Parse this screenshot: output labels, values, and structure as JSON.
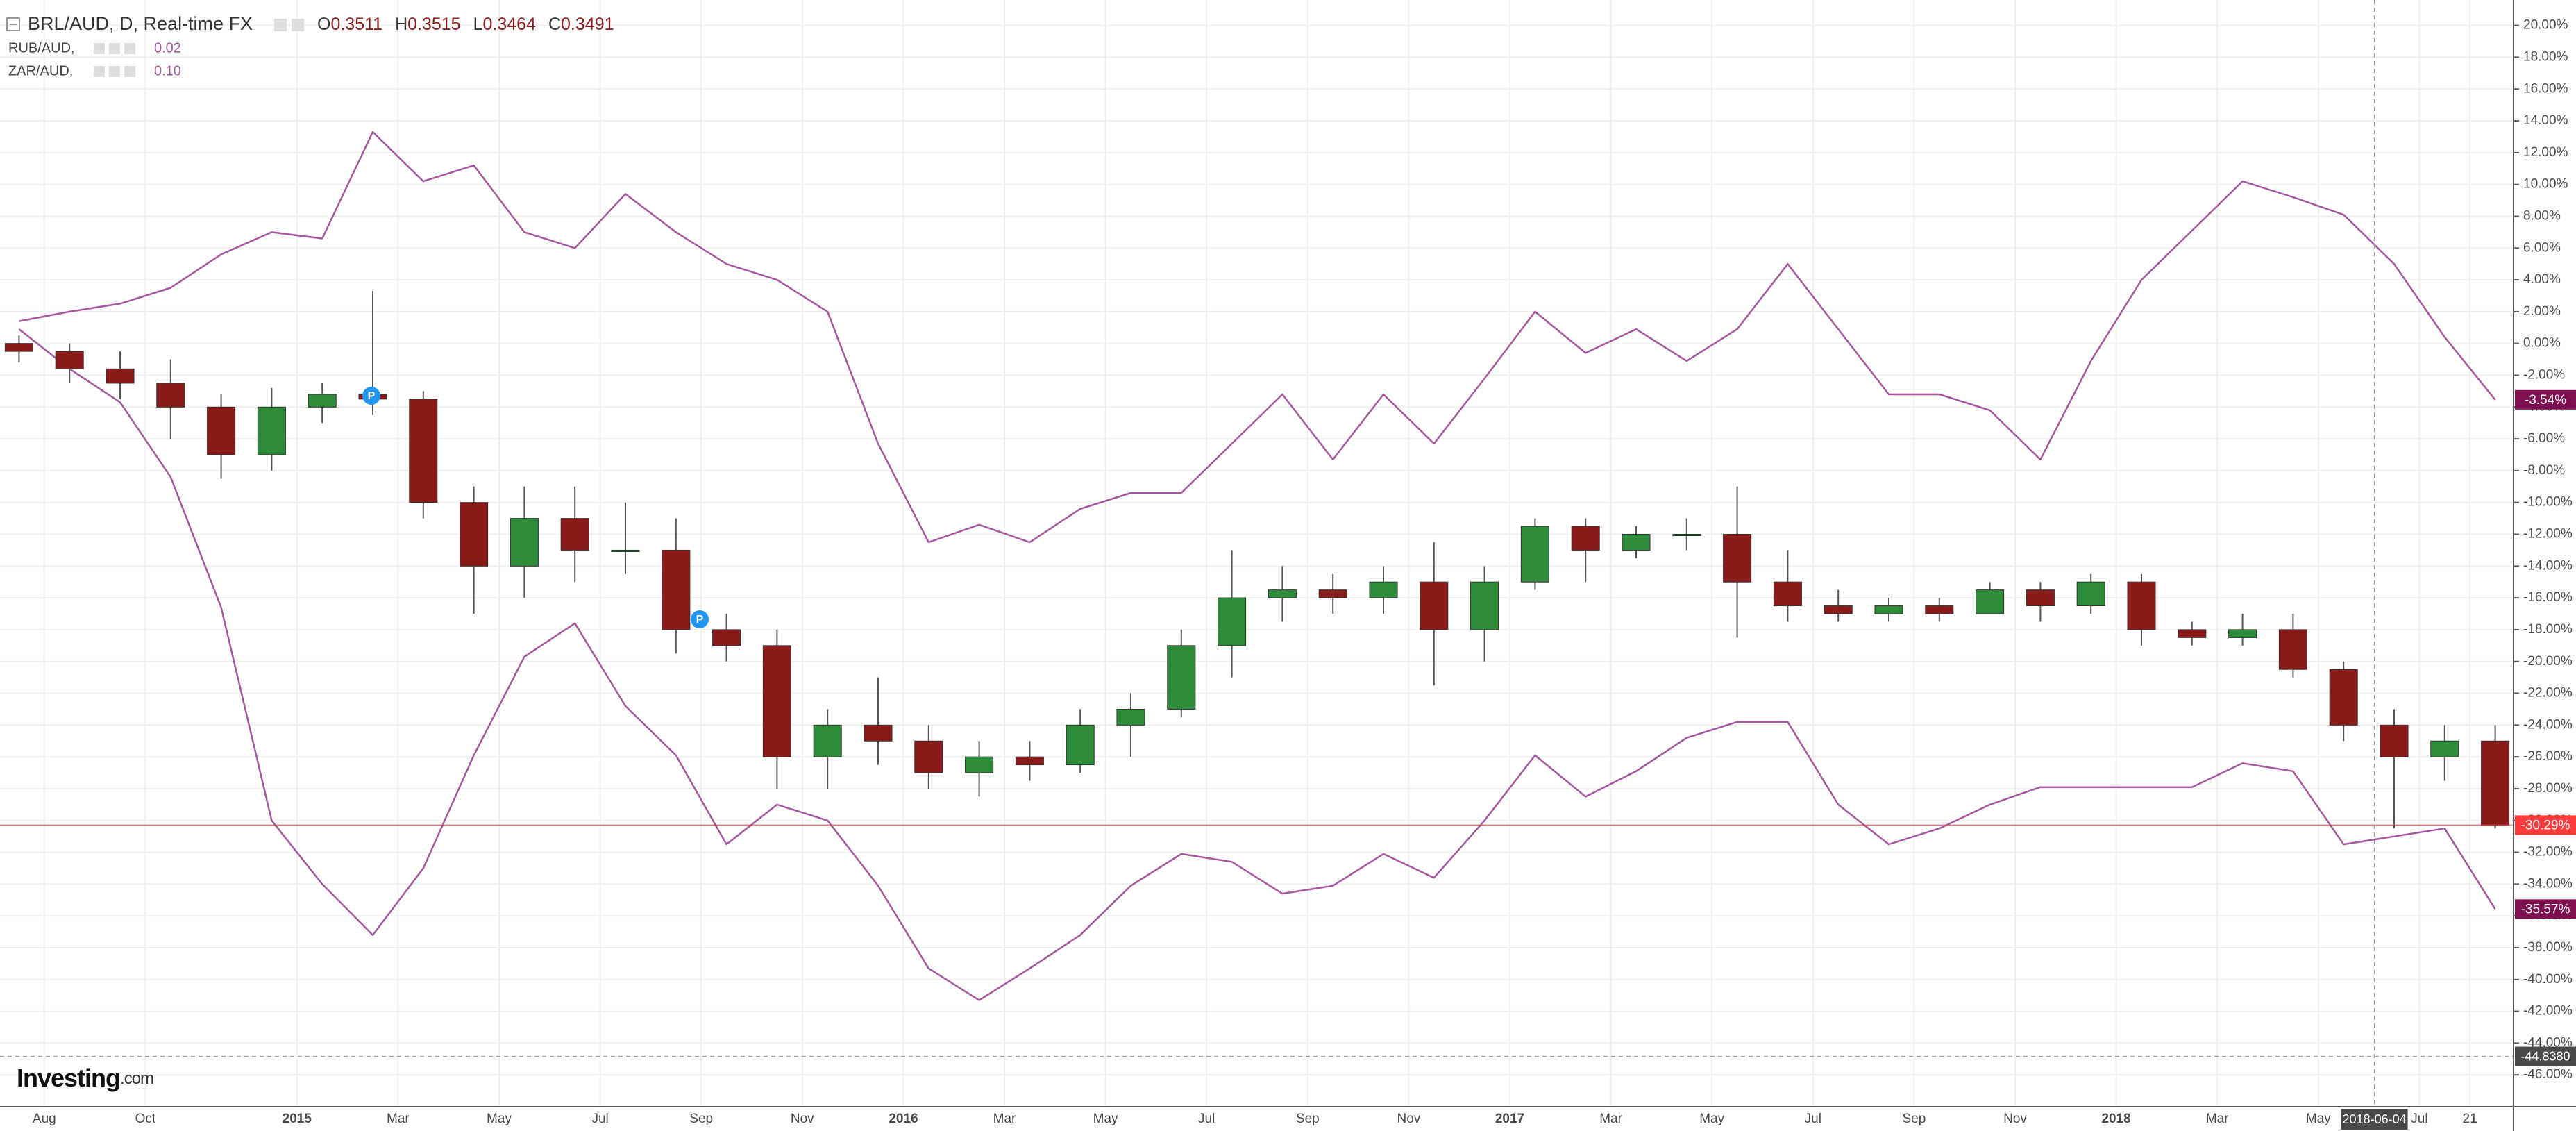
{
  "chart_data": {
    "type": "candlestick",
    "title": "BRL/AUD, D, Real-time FX",
    "ohlc_header": [
      {
        "key": "O",
        "value": "0.3511"
      },
      {
        "key": "H",
        "value": "0.3515"
      },
      {
        "key": "L",
        "value": "0.3464"
      },
      {
        "key": "C",
        "value": "0.3491"
      }
    ],
    "categories": [
      null,
      "Aug",
      null,
      "Oct",
      null,
      null,
      "2015",
      null,
      "Mar",
      null,
      "May",
      null,
      "Jul",
      null,
      "Sep",
      null,
      "Nov",
      null,
      "2016",
      null,
      "Mar",
      null,
      "May",
      null,
      "Jul",
      null,
      "Sep",
      null,
      "Nov",
      null,
      "2017",
      null,
      "Mar",
      null,
      "May",
      null,
      "Jul",
      null,
      "Sep",
      null,
      "Nov",
      null,
      "2018",
      null,
      "Mar",
      null,
      "May",
      null,
      "Jul",
      "21"
    ],
    "candles": {
      "name": "BRL/AUD",
      "up_color": "#2e8b3a",
      "down_color": "#8b1a1a",
      "wick_color": "#555555",
      "open": [
        0,
        -0.5,
        -1.6,
        -2.5,
        -4,
        -7,
        -4,
        -3.2,
        -3.5,
        -10,
        -14,
        -11,
        -13,
        -13,
        -18,
        -19,
        -26,
        -24,
        -25,
        -27,
        -26,
        -26.5,
        -24,
        -23,
        -19,
        -16,
        -15.5,
        -16,
        -15,
        -18,
        -15,
        -11.5,
        -13,
        -12,
        -12,
        -15,
        -16.5,
        -17,
        -16.5,
        -17,
        -15.5,
        -16.5,
        -15,
        -18,
        -18.5,
        -18,
        -20.5,
        -24,
        -26,
        -25
      ],
      "high": [
        0.5,
        0,
        -0.5,
        -1,
        -3.2,
        -2.8,
        -2.5,
        3.3,
        -3,
        -9,
        -9,
        -9,
        -10,
        -11,
        -17,
        -18,
        -23,
        -21,
        -24,
        -25,
        -25,
        -23,
        -22,
        -18,
        -13,
        -14,
        -14.5,
        -14,
        -12.5,
        -14,
        -11,
        -11,
        -11.5,
        -11,
        -9,
        -13,
        -15.5,
        -16,
        -16,
        -15,
        -15,
        -14.5,
        -14.5,
        -17.5,
        -17,
        -17,
        -20,
        -23,
        -24,
        -24
      ],
      "low": [
        -1.2,
        -2.5,
        -3.5,
        -6,
        -8.5,
        -8,
        -5,
        -4.5,
        -11,
        -17,
        -16,
        -15,
        -14.5,
        -19.5,
        -20,
        -28,
        -28,
        -26.5,
        -28,
        -28.5,
        -27.5,
        -27,
        -26,
        -23.5,
        -21,
        -17.5,
        -17,
        -17,
        -21.5,
        -20,
        -15.5,
        -15,
        -13.5,
        -13,
        -18.5,
        -17.5,
        -17.5,
        -17.5,
        -17.5,
        -17,
        -17.5,
        -17,
        -19,
        -19,
        -19,
        -21,
        -25,
        -30.5,
        -27.5,
        -30.5
      ],
      "close": [
        -0.5,
        -1.6,
        -2.5,
        -4,
        -7,
        -4,
        -3.2,
        -3.5,
        -10,
        -14,
        -11,
        -13,
        -13,
        -18,
        -19,
        -26,
        -24,
        -25,
        -27,
        -26,
        -26.5,
        -24,
        -23,
        -19,
        -16,
        -15.5,
        -16,
        -15,
        -18,
        -15,
        -11.5,
        -13,
        -12,
        -12,
        -15,
        -16.5,
        -17,
        -16.5,
        -17,
        -15.5,
        -16.5,
        -15,
        -18,
        -18.5,
        -18,
        -20.5,
        -24,
        -26,
        -25,
        -30.29
      ],
      "last_label": "-30.29%",
      "last_color": "#ff3b3b"
    },
    "series": [
      {
        "name": "RUB/AUD,",
        "legend_value": "0.02",
        "color": "#a4579f",
        "last_label": "-35.57%",
        "last_color": "#7e1050",
        "values": [
          0.9,
          -1.6,
          -3.7,
          -8.4,
          -16.6,
          -30,
          -34,
          -37.2,
          -33,
          -25.9,
          -19.7,
          -17.6,
          -22.8,
          -25.9,
          -31.5,
          -29,
          -30,
          -34.1,
          -39.3,
          -41.3,
          -39.3,
          -37.2,
          -34.1,
          -32.1,
          -32.6,
          -34.6,
          -34.1,
          -32.1,
          -33.6,
          -30,
          -25.9,
          -28.5,
          -26.9,
          -24.8,
          -23.8,
          -23.8,
          -29,
          -31.5,
          -30.5,
          -29,
          -27.9,
          -27.9,
          -27.9,
          -27.9,
          -26.4,
          -26.9,
          -31.5,
          -31,
          -30.5,
          -35.57
        ]
      },
      {
        "name": "ZAR/AUD,",
        "legend_value": "0.10",
        "color": "#a4579f",
        "last_label": "-3.54%",
        "last_color": "#7e1050",
        "values": [
          1.4,
          2,
          2.5,
          3.5,
          5.6,
          7,
          6.6,
          13.3,
          10.2,
          11.2,
          7,
          6,
          9.4,
          7,
          5,
          4,
          2,
          -6.3,
          -12.5,
          -11.4,
          -12.5,
          -10.4,
          -9.4,
          -9.4,
          -6.3,
          -3.2,
          -7.3,
          -3.2,
          -6.3,
          -2.2,
          2,
          -0.6,
          0.9,
          -1.1,
          0.9,
          5,
          0.9,
          -3.2,
          -3.2,
          -4.2,
          -7.3,
          -1.1,
          4,
          7.1,
          10.2,
          9.2,
          8.1,
          5,
          0.4,
          -3.54
        ]
      }
    ],
    "ylim": [
      -48,
      21.6
    ],
    "yticks": [
      {
        "value": 20,
        "label": "20.00%"
      },
      {
        "value": 18,
        "label": "18.00%"
      },
      {
        "value": 16,
        "label": "16.00%"
      },
      {
        "value": 14,
        "label": "14.00%"
      },
      {
        "value": 12,
        "label": "12.00%"
      },
      {
        "value": 10,
        "label": "10.00%"
      },
      {
        "value": 8,
        "label": "8.00%"
      },
      {
        "value": 6,
        "label": "6.00%"
      },
      {
        "value": 4,
        "label": "4.00%"
      },
      {
        "value": 2,
        "label": "2.00%"
      },
      {
        "value": 0,
        "label": "0.00%"
      },
      {
        "value": -2,
        "label": "-2.00%"
      },
      {
        "value": -4,
        "label": "-4.00%"
      },
      {
        "value": -6,
        "label": "-6.00%"
      },
      {
        "value": -8,
        "label": "-8.00%"
      },
      {
        "value": -10,
        "label": "-10.00%"
      },
      {
        "value": -12,
        "label": "-12.00%"
      },
      {
        "value": -14,
        "label": "-14.00%"
      },
      {
        "value": -16,
        "label": "-16.00%"
      },
      {
        "value": -18,
        "label": "-18.00%"
      },
      {
        "value": -20,
        "label": "-20.00%"
      },
      {
        "value": -22,
        "label": "-22.00%"
      },
      {
        "value": -24,
        "label": "-24.00%"
      },
      {
        "value": -26,
        "label": "-26.00%"
      },
      {
        "value": -28,
        "label": "-28.00%"
      },
      {
        "value": -30,
        "label": "-30.00%"
      },
      {
        "value": -32,
        "label": "-32.00%"
      },
      {
        "value": -34,
        "label": "-34.00%"
      },
      {
        "value": -36,
        "label": "-36.00%"
      },
      {
        "value": -38,
        "label": "-38.00%"
      },
      {
        "value": -40,
        "label": "-40.00%"
      },
      {
        "value": -42,
        "label": "-42.00%"
      },
      {
        "value": -44,
        "label": "-44.00%"
      },
      {
        "value": -46,
        "label": "-46.00%"
      }
    ],
    "grid": true,
    "crosshair": {
      "x_label": "2018-06-04",
      "y_value": -44.838,
      "y_label": "-44.8380"
    },
    "markers": [
      "P",
      "P"
    ],
    "logo": {
      "main": "Investing",
      "suffix": ".com"
    }
  }
}
